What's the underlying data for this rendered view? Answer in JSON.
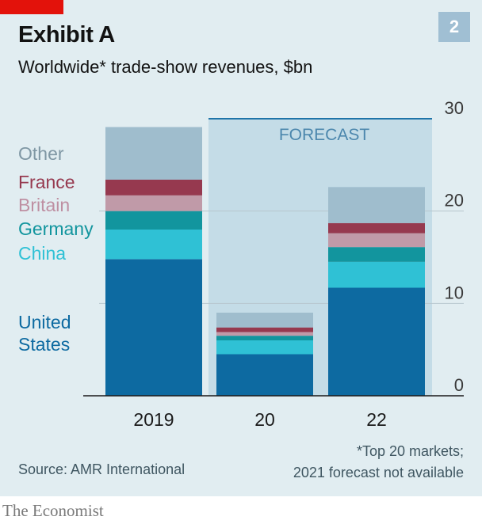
{
  "header": {
    "title": "Exhibit A",
    "subtitle": "Worldwide* trade-show revenues, $bn",
    "badge": "2"
  },
  "footer": {
    "source": "Source: AMR International",
    "note_line1": "*Top 20 markets;",
    "note_line2": "2021 forecast not available",
    "brand": "The Economist"
  },
  "chart_data": {
    "type": "bar",
    "stacked": true,
    "categories": [
      "2019",
      "20",
      "22"
    ],
    "forecast_label": "FORECAST",
    "forecast_categories": [
      "20",
      "22"
    ],
    "ylim": [
      0,
      30
    ],
    "yticks": [
      0,
      10,
      20,
      30
    ],
    "grid": true,
    "legend_placement": "left",
    "series": [
      {
        "name": "United States",
        "values": [
          14.8,
          4.5,
          11.7
        ],
        "color": "#0d6aa1"
      },
      {
        "name": "China",
        "values": [
          3.2,
          1.5,
          2.8
        ],
        "color": "#2fc1d5"
      },
      {
        "name": "Germany",
        "values": [
          2.0,
          0.5,
          1.6
        ],
        "color": "#12959e"
      },
      {
        "name": "Britain",
        "values": [
          1.7,
          0.4,
          1.5
        ],
        "color": "#c09aa8"
      },
      {
        "name": "France",
        "values": [
          1.7,
          0.5,
          1.1
        ],
        "color": "#96394f"
      },
      {
        "name": "Other",
        "values": [
          5.7,
          1.6,
          3.9
        ],
        "color": "#9fbdcd"
      }
    ]
  },
  "legend": [
    {
      "label": "Other",
      "color": "#7f97a4"
    },
    {
      "label": "France",
      "color": "#96394f"
    },
    {
      "label": "Britain",
      "color": "#be8fa2"
    },
    {
      "label": "Germany",
      "color": "#12959e"
    },
    {
      "label": "China",
      "color": "#2fc1d5"
    },
    {
      "label_line1": "United",
      "label_line2": "States",
      "color": "#0d6aa1"
    }
  ]
}
